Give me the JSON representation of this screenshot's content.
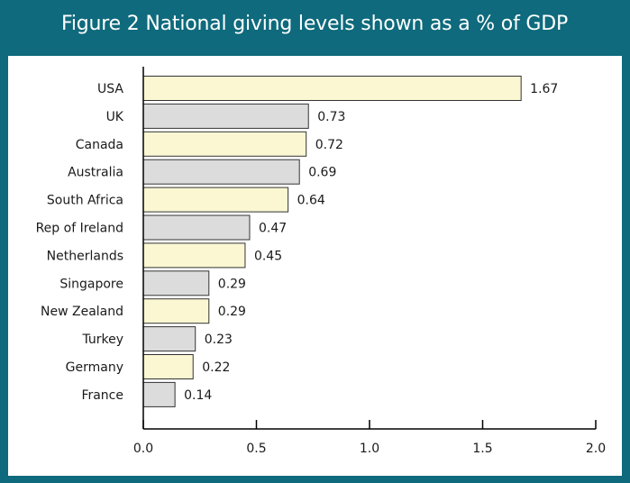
{
  "title": "Figure 2 National giving levels shown as a % of GDP",
  "colors": {
    "frame": "#0e6a7c",
    "bar_yellow": "#fbf7d2",
    "bar_grey": "#dcdcdc",
    "bar_stroke": "#333333",
    "text": "#1a1a1a"
  },
  "chart_data": {
    "type": "bar",
    "orientation": "horizontal",
    "title": "Figure 2 National giving levels shown as a % of GDP",
    "xlabel": "",
    "ylabel": "",
    "xlim": [
      0,
      2.0
    ],
    "x_ticks": [
      "0.0",
      "0.5",
      "1.0",
      "1.5",
      "2.0"
    ],
    "grid": false,
    "categories": [
      "USA",
      "UK",
      "Canada",
      "Australia",
      "South Africa",
      "Rep of Ireland",
      "Netherlands",
      "Singapore",
      "New Zealand",
      "Turkey",
      "Germany",
      "France"
    ],
    "values": [
      1.67,
      0.73,
      0.72,
      0.69,
      0.64,
      0.47,
      0.45,
      0.29,
      0.29,
      0.23,
      0.22,
      0.14
    ],
    "value_labels": [
      "1.67",
      "0.73",
      "0.72",
      "0.69",
      "0.64",
      "0.47",
      "0.45",
      "0.29",
      "0.29",
      "0.23",
      "0.22",
      "0.14"
    ],
    "bar_colors": [
      "yellow",
      "grey",
      "yellow",
      "grey",
      "yellow",
      "grey",
      "yellow",
      "grey",
      "yellow",
      "grey",
      "yellow",
      "grey"
    ]
  }
}
